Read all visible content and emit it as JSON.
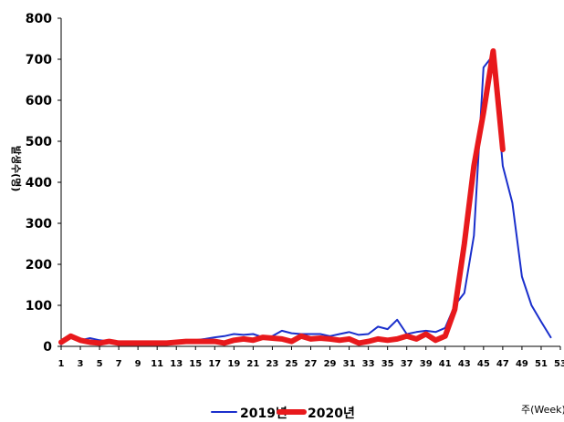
{
  "chart_data": {
    "type": "line",
    "title": "",
    "ylabel": "발생수(명)",
    "xlabel": "주(Week)",
    "ylim": [
      0,
      800
    ],
    "yticks": [
      0,
      100,
      200,
      300,
      400,
      500,
      600,
      700,
      800
    ],
    "xlim": [
      1,
      53
    ],
    "xticks": [
      1,
      3,
      5,
      7,
      9,
      11,
      13,
      15,
      17,
      19,
      21,
      23,
      25,
      27,
      29,
      31,
      33,
      35,
      37,
      39,
      41,
      43,
      45,
      47,
      49,
      51,
      53
    ],
    "grid": false,
    "legend_position": "bottom",
    "series": [
      {
        "name": "2019년",
        "color": "#1a2fcc",
        "x": [
          1,
          2,
          3,
          4,
          5,
          6,
          7,
          8,
          9,
          10,
          11,
          12,
          13,
          14,
          15,
          16,
          17,
          18,
          19,
          20,
          21,
          22,
          23,
          24,
          25,
          26,
          27,
          28,
          29,
          30,
          31,
          32,
          33,
          34,
          35,
          36,
          37,
          38,
          39,
          40,
          41,
          42,
          43,
          44,
          45,
          46,
          47,
          48,
          49,
          50,
          51,
          52
        ],
        "values": [
          5,
          25,
          15,
          20,
          15,
          12,
          10,
          10,
          12,
          10,
          12,
          12,
          12,
          15,
          15,
          18,
          22,
          25,
          30,
          28,
          30,
          22,
          25,
          38,
          32,
          30,
          30,
          30,
          25,
          30,
          35,
          28,
          30,
          48,
          42,
          65,
          30,
          35,
          38,
          35,
          45,
          100,
          130,
          270,
          680,
          710,
          440,
          350,
          170,
          100,
          60,
          22
        ]
      },
      {
        "name": "2020년",
        "color": "#e8191c",
        "x": [
          1,
          2,
          3,
          4,
          5,
          6,
          7,
          8,
          9,
          10,
          11,
          12,
          13,
          14,
          15,
          16,
          17,
          18,
          19,
          20,
          21,
          22,
          23,
          24,
          25,
          26,
          27,
          28,
          29,
          30,
          31,
          32,
          33,
          34,
          35,
          36,
          37,
          38,
          39,
          40,
          41,
          42,
          43,
          44,
          45,
          46,
          47
        ],
        "values": [
          10,
          25,
          15,
          10,
          8,
          12,
          8,
          8,
          8,
          8,
          8,
          8,
          10,
          12,
          12,
          12,
          12,
          8,
          15,
          18,
          15,
          22,
          20,
          18,
          12,
          25,
          18,
          20,
          18,
          15,
          18,
          8,
          12,
          18,
          15,
          18,
          25,
          18,
          30,
          15,
          25,
          90,
          250,
          440,
          570,
          720,
          480
        ]
      }
    ]
  }
}
